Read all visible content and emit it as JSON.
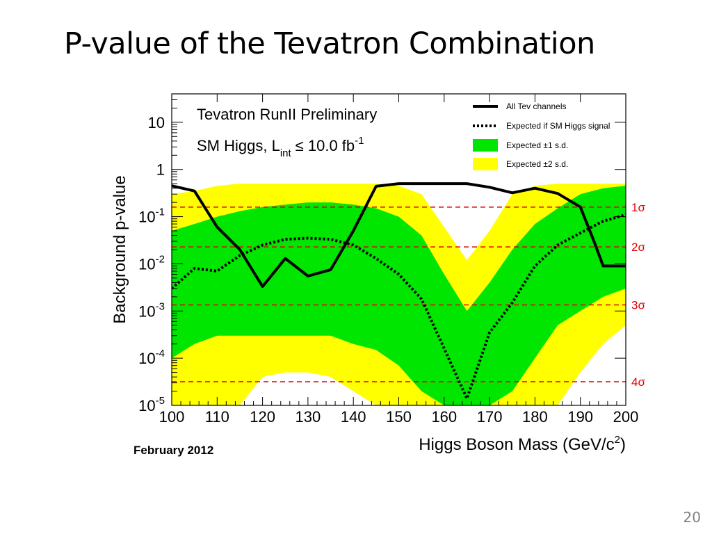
{
  "slide": {
    "title": "P-value of the Tevatron Combination",
    "page_number": "20"
  },
  "chart_data": {
    "type": "line",
    "ylog": true,
    "xlim": [
      100,
      200
    ],
    "ylim": [
      1e-05,
      40
    ],
    "xlabel": "Higgs Boson Mass (GeV/c",
    "xlabel_sup": "2",
    "xlabel_tail": ")",
    "ylabel": "Background p-value",
    "xticks": [
      100,
      110,
      120,
      130,
      140,
      150,
      160,
      170,
      180,
      190,
      200
    ],
    "xtick_labels": [
      "100",
      "110",
      "120",
      "130",
      "140",
      "150",
      "160",
      "170",
      "180",
      "190",
      "200"
    ],
    "yticks": [
      {
        "value": 10,
        "base": "10",
        "exp": ""
      },
      {
        "value": 1,
        "base": "1",
        "exp": ""
      },
      {
        "value": 0.1,
        "base": "10",
        "exp": "-1"
      },
      {
        "value": 0.01,
        "base": "10",
        "exp": "-2"
      },
      {
        "value": 0.001,
        "base": "10",
        "exp": "-3"
      },
      {
        "value": 0.0001,
        "base": "10",
        "exp": "-4"
      },
      {
        "value": 1e-05,
        "base": "10",
        "exp": "-5"
      }
    ],
    "annotation": {
      "line1": "Tevatron RunII Preliminary",
      "line2_a": "SM Higgs, L",
      "line2_sub": "int",
      "line2_b": "≤ 10.0 fb",
      "line2_sup": "-1"
    },
    "date_label": "February 2012",
    "legend_position": "top-right",
    "legend": [
      {
        "label": "All Tev channels",
        "style": "solid"
      },
      {
        "label": "Expected if SM Higgs signal",
        "style": "dotted"
      },
      {
        "label": "Expected ±1 s.d.",
        "style": "band",
        "color": "#00e600"
      },
      {
        "label": "Expected ±2 s.d.",
        "style": "band",
        "color": "#ffff00"
      }
    ],
    "sigma_lines": [
      {
        "label": "1σ",
        "pvalue": 0.159
      },
      {
        "label": "2σ",
        "pvalue": 0.0228
      },
      {
        "label": "3σ",
        "pvalue": 0.00135
      },
      {
        "label": "4σ",
        "pvalue": 3.17e-05
      }
    ],
    "series": [
      {
        "name": "All Tev channels",
        "x": [
          100,
          105,
          110,
          115,
          120,
          125,
          130,
          135,
          140,
          145,
          150,
          155,
          160,
          165,
          170,
          175,
          180,
          185,
          190,
          193,
          195,
          200
        ],
        "y": [
          0.45,
          0.35,
          0.06,
          0.02,
          0.0033,
          0.013,
          0.0055,
          0.0075,
          0.05,
          0.44,
          0.5,
          0.5,
          0.5,
          0.5,
          0.42,
          0.32,
          0.4,
          0.31,
          0.16,
          0.03,
          0.009,
          0.009
        ]
      },
      {
        "name": "Expected if SM Higgs signal",
        "x": [
          100,
          105,
          110,
          115,
          120,
          125,
          130,
          135,
          140,
          145,
          150,
          155,
          160,
          165,
          170,
          175,
          180,
          185,
          190,
          195,
          200
        ],
        "y": [
          0.003,
          0.008,
          0.007,
          0.015,
          0.025,
          0.033,
          0.035,
          0.033,
          0.025,
          0.013,
          0.006,
          0.0018,
          0.00016,
          1.4e-05,
          0.00035,
          0.0015,
          0.009,
          0.025,
          0.045,
          0.08,
          0.11
        ]
      }
    ],
    "bands": [
      {
        "name": "Expected ±2 s.d.",
        "color": "#ffff00",
        "x": [
          100,
          105,
          110,
          115,
          120,
          125,
          130,
          135,
          140,
          145,
          150,
          155,
          160,
          165,
          170,
          175,
          180,
          185,
          190,
          195,
          200
        ],
        "upper": [
          0.3,
          0.35,
          0.45,
          0.5,
          0.5,
          0.5,
          0.5,
          0.5,
          0.5,
          0.5,
          0.45,
          0.3,
          0.06,
          0.012,
          0.05,
          0.3,
          0.45,
          0.5,
          0.5,
          0.5,
          0.5
        ],
        "lower": [
          1e-05,
          1e-05,
          1e-05,
          1e-05,
          4e-05,
          5e-05,
          5e-05,
          4e-05,
          2e-05,
          1e-05,
          1e-05,
          1e-05,
          1e-05,
          1e-05,
          1e-05,
          1e-05,
          1e-05,
          1e-05,
          5e-05,
          0.0002,
          0.0005
        ]
      },
      {
        "name": "Expected ±1 s.d.",
        "color": "#00e600",
        "x": [
          100,
          105,
          110,
          115,
          120,
          125,
          130,
          135,
          140,
          145,
          150,
          155,
          160,
          165,
          170,
          175,
          180,
          185,
          190,
          195,
          200
        ],
        "upper": [
          0.05,
          0.07,
          0.1,
          0.13,
          0.16,
          0.18,
          0.2,
          0.2,
          0.18,
          0.15,
          0.1,
          0.04,
          0.006,
          0.001,
          0.004,
          0.02,
          0.07,
          0.15,
          0.3,
          0.4,
          0.45
        ],
        "lower": [
          0.0001,
          0.0002,
          0.0003,
          0.0003,
          0.0003,
          0.0003,
          0.0003,
          0.0003,
          0.0002,
          0.00015,
          7e-05,
          2e-05,
          1e-05,
          1e-05,
          1e-05,
          2e-05,
          0.0001,
          0.0005,
          0.001,
          0.002,
          0.003
        ]
      }
    ]
  }
}
